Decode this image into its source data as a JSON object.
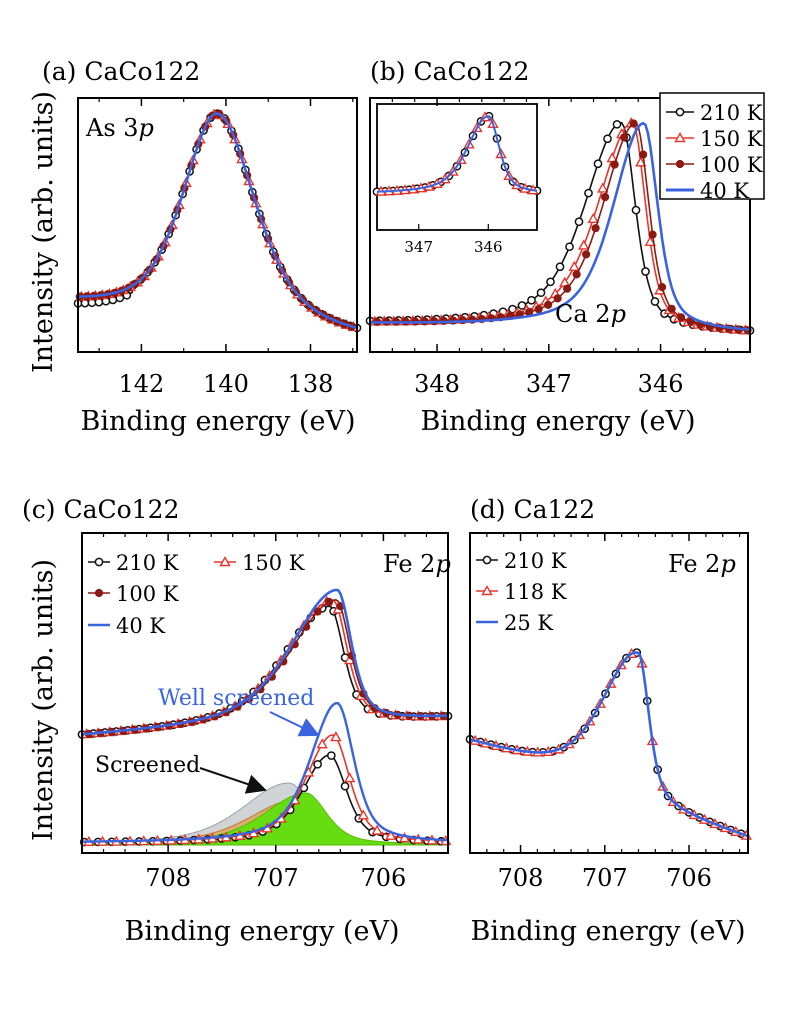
{
  "figure": {
    "ylabel_top": "Intensity (arb. units)",
    "ylabel_bottom": "Intensity (arb. units)"
  },
  "panel_a": {
    "tag": "(a) CaCo122",
    "label_main": "As 3",
    "label_italic": "p",
    "xlabel": "Binding energy (eV)"
  },
  "panel_b": {
    "tag": "(b) CaCo122",
    "label_main": "Ca 2",
    "label_italic": "p",
    "xlabel": "Binding energy (eV)"
  },
  "panel_c": {
    "tag": "(c) CaCo122",
    "label_main": "Fe 2",
    "label_italic": "p",
    "xlabel": "Binding energy (eV)",
    "annot_well": "Well screened",
    "annot_screened": "Screened"
  },
  "panel_d": {
    "tag": "(d) Ca122",
    "label_main": "Fe 2",
    "label_italic": "p",
    "xlabel": "Binding energy (eV)"
  },
  "legend_top": [
    "210 K",
    "150 K",
    "100 K",
    "40 K"
  ],
  "legend_c": [
    "210 K",
    "150 K",
    "100 K",
    "40 K"
  ],
  "legend_d": [
    "210 K",
    "118 K",
    "25 K"
  ],
  "colors": {
    "black": "#111111",
    "red": "#e8352b",
    "darkred": "#8b1a12",
    "blue": "#3a63e0",
    "green": "#66dd11",
    "gray": "#c8ccd0",
    "orange": "#e0a050"
  },
  "chart_data": [
    {
      "type": "line",
      "panel": "a",
      "title": "CaCo122",
      "xlabel": "Binding energy (eV)",
      "ylabel": "Intensity (arb. units)",
      "xlim": [
        143.5,
        136.9
      ],
      "xticks": [
        142,
        140,
        138
      ],
      "peak_center_eV": 140.2,
      "series": [
        {
          "name": "210 K",
          "marker": "open-circle"
        },
        {
          "name": "150 K",
          "marker": "open-triangle"
        },
        {
          "name": "100 K",
          "marker": "filled-circle"
        },
        {
          "name": "40 K",
          "marker": "line"
        }
      ]
    },
    {
      "type": "line",
      "panel": "b",
      "title": "CaCo122",
      "xlabel": "Binding energy (eV)",
      "ylabel": "Intensity (arb. units)",
      "xlim": [
        348.6,
        345.2
      ],
      "xticks": [
        348,
        347,
        346
      ],
      "inset_xticks": [
        347,
        346
      ],
      "peak_center_eV": {
        "210 K": 346.35,
        "150 K": 346.25,
        "100 K": 346.22,
        "40 K": 346.15
      },
      "series": [
        {
          "name": "210 K",
          "marker": "open-circle"
        },
        {
          "name": "150 K",
          "marker": "open-triangle"
        },
        {
          "name": "100 K",
          "marker": "filled-circle"
        },
        {
          "name": "40 K",
          "marker": "line"
        }
      ]
    },
    {
      "type": "line",
      "panel": "c",
      "title": "CaCo122",
      "xlabel": "Binding energy (eV)",
      "ylabel": "Intensity (arb. units)",
      "xlim": [
        708.8,
        705.4
      ],
      "xticks": [
        708,
        707,
        706
      ],
      "peak_center_eV": {
        "210 K": 706.5,
        "150 K": 706.47,
        "100 K": 706.44,
        "40 K": 706.43
      },
      "components": {
        "screened_center_eV": 706.9,
        "well_screened_center_eV": 706.45
      },
      "series": [
        {
          "name": "210 K",
          "marker": "open-circle"
        },
        {
          "name": "150 K",
          "marker": "open-triangle"
        },
        {
          "name": "100 K",
          "marker": "filled-circle"
        },
        {
          "name": "40 K",
          "marker": "line"
        }
      ]
    },
    {
      "type": "line",
      "panel": "d",
      "title": "Ca122",
      "xlabel": "Binding energy (eV)",
      "ylabel": "Intensity (arb. units)",
      "xlim": [
        708.6,
        705.3
      ],
      "xticks": [
        708,
        707,
        706
      ],
      "peak_center_eV": 706.6,
      "series": [
        {
          "name": "210 K",
          "marker": "open-circle"
        },
        {
          "name": "118 K",
          "marker": "open-triangle"
        },
        {
          "name": "25 K",
          "marker": "line"
        }
      ]
    }
  ]
}
